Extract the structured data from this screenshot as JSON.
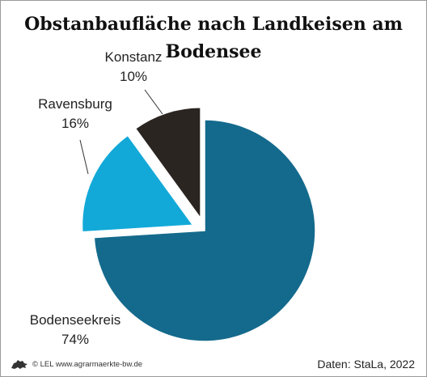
{
  "chart_data": {
    "type": "pie",
    "title": "Obstanbaufläche nach Landkeisen am Bodensee",
    "slices": [
      {
        "label": "Bodenseekreis",
        "value": 74,
        "value_label": "74%",
        "color": "#146a8c",
        "exploded": false
      },
      {
        "label": "Ravensburg",
        "value": 16,
        "value_label": "16%",
        "color": "#12a9d8",
        "exploded": true
      },
      {
        "label": "Konstanz",
        "value": 10,
        "value_label": "10%",
        "color": "#2b2522",
        "exploded": true
      }
    ]
  },
  "footer": {
    "publisher": "© LEL www.agrarmaerkte-bw.de",
    "source": "Daten: StaLa, 2022",
    "logo_icon": "lion-icon"
  }
}
